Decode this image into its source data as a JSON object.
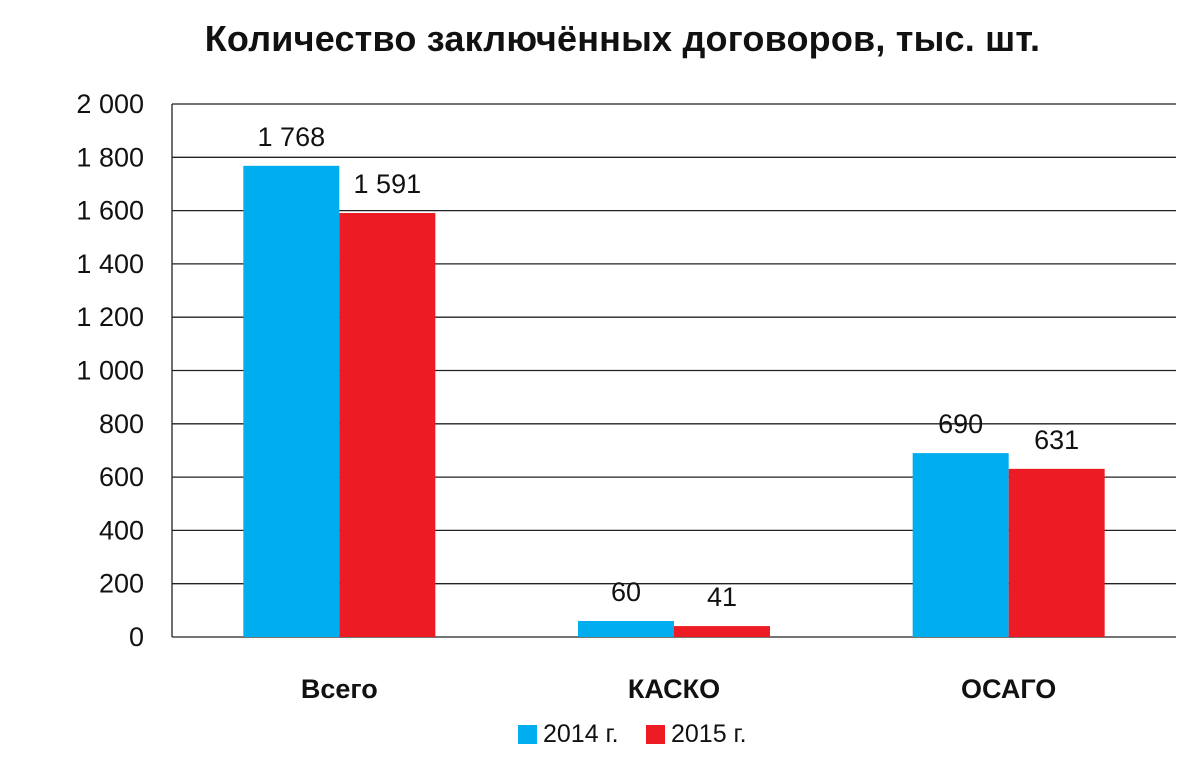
{
  "chart_data": {
    "type": "bar",
    "title": "Количество заключённых договоров, тыс. шт.",
    "categories": [
      "Всего",
      "КАСКО",
      "ОСАГО"
    ],
    "series": [
      {
        "name": "2014 г.",
        "color": "#00AEEF",
        "values": [
          1768,
          60,
          690
        ],
        "labels": [
          "1 768",
          "60",
          "690"
        ]
      },
      {
        "name": "2015 г.",
        "color": "#ED1C24",
        "values": [
          1591,
          41,
          631
        ],
        "labels": [
          "1 591",
          "41",
          "631"
        ]
      }
    ],
    "ylim": [
      0,
      2000
    ],
    "yticks": [
      0,
      200,
      400,
      600,
      800,
      1000,
      1200,
      1400,
      1600,
      1800,
      2000
    ],
    "ytick_labels": [
      "0",
      "200",
      "400",
      "600",
      "800",
      "1 000",
      "1 200",
      "1 400",
      "1 600",
      "1 800",
      "2 000"
    ],
    "grid": true,
    "legend": "bottom",
    "xlabel": "",
    "ylabel": ""
  }
}
